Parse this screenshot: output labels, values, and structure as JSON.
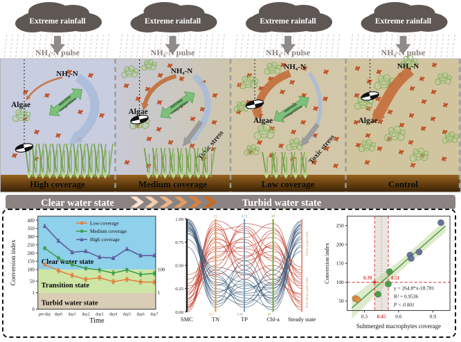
{
  "figure": {
    "cloud_label": "Extreme rainfall",
    "pulse_label": "NH₄-N pulse",
    "nh4_label": "NH₄-N",
    "algae_label": "Algae",
    "competition_label_line1": "nutrient",
    "competition_label_line2": "competition",
    "toxic_label": "Toxic stress",
    "panels": [
      {
        "coverage": "High coverage",
        "grass": "high",
        "has_competition": true,
        "has_blue": true,
        "has_toxic": false
      },
      {
        "coverage": "Medium coverage",
        "grass": "medium",
        "has_competition": true,
        "has_blue": true,
        "has_toxic": true
      },
      {
        "coverage": "Low coverage",
        "grass": "low",
        "has_competition": true,
        "has_blue": true,
        "has_toxic": true
      },
      {
        "coverage": "Control",
        "grass": "none",
        "has_competition": false,
        "has_blue": false,
        "has_toxic": false
      }
    ],
    "transition": {
      "left": "Clear water state",
      "right": "Turbid water state"
    }
  },
  "colors": {
    "water": [
      "#c9cde0",
      "grad",
      "#d2c7a9",
      "#d1c5a0"
    ],
    "water_mid_from": "#c7c9d6",
    "water_mid_to": "#cfc6ad",
    "sediment_top": "#96621f",
    "sediment_bottom": "#3a2104",
    "cloud": "#5e5753",
    "rain": "#cbc6c2",
    "pulse_text": "#8a827e",
    "nh4_dot": "#c0542a",
    "algae": "#86b05e",
    "competition_arrow": "#7cc07c",
    "blue_arrow": "#a9bdd9",
    "orange_arrow": "#c4703d",
    "grey_arrow": "#9b9b9b",
    "bar_bg": "#8b8381",
    "chevrons": [
      "#f6e2cd",
      "#f2cead",
      "#edb488",
      "#e29a62",
      "#d8813c",
      "#cb6a1e"
    ]
  },
  "chart_data": [
    {
      "type": "line",
      "xlabel": "Time",
      "ylabel": "Conversion index",
      "categories": [
        "pre-day",
        "day0",
        "day1",
        "day2",
        "day3",
        "day4",
        "day5",
        "day6",
        "day7"
      ],
      "series": [
        {
          "name": "Low coverage",
          "color": "#e2813f",
          "marker": "square",
          "values": [
            130,
            95,
            75,
            58,
            65,
            48,
            58,
            47,
            46
          ]
        },
        {
          "name": "Medium coverage",
          "color": "#3c9e4d",
          "marker": "circle",
          "values": [
            230,
            170,
            130,
            107,
            98,
            85,
            98,
            79,
            83
          ]
        },
        {
          "name": "High coverage",
          "color": "#5b5c9d",
          "marker": "triangle",
          "values": [
            365,
            275,
            205,
            212,
            175,
            170,
            225,
            185,
            186
          ]
        }
      ],
      "yticks": [
        0,
        1,
        50,
        100,
        150,
        200,
        250,
        300,
        350,
        400
      ],
      "right_ticks": [
        100,
        1
      ],
      "ylim": [
        0,
        425
      ],
      "zones": [
        {
          "label": "Clear water state",
          "range": [
            100,
            425
          ],
          "color": "#8fd0ea"
        },
        {
          "label": "Transition state",
          "range": [
            1,
            100
          ],
          "color": "#cde6a5"
        },
        {
          "label": "Turbid water state",
          "range": [
            0,
            1
          ],
          "color": "#d9cdb6"
        }
      ],
      "legend_position": "top-right",
      "grid": false
    },
    {
      "type": "parallel",
      "axes": [
        {
          "label": "SMC",
          "color": "#1a1a1a",
          "top": "",
          "bottom": ""
        },
        {
          "label": "TN",
          "color": "#e0923f",
          "top": "2.2",
          "bottom": "0.2"
        },
        {
          "label": "TP",
          "color": "#7e9ab5",
          "top": "0.12",
          "bottom": "0.03"
        },
        {
          "label": "Chl-a",
          "color": "#76a43a",
          "top": "40",
          "bottom": "10"
        },
        {
          "label": "Steady state",
          "color": "#e2907a",
          "top": "",
          "bottom": ""
        }
      ],
      "yticks": [
        "0.00",
        "0.25",
        "0.50",
        "0.75",
        "1.00"
      ],
      "right_labels": [
        "Clear water state",
        "Non-clear water state"
      ],
      "groups": [
        {
          "name": "clear-water-state",
          "color": "#3d5a78",
          "lines": [
            [
              0.95,
              0.35,
              0.2,
              0.25,
              0.9
            ],
            [
              0.92,
              0.15,
              0.45,
              0.1,
              0.95
            ],
            [
              1.0,
              0.4,
              0.1,
              0.3,
              0.85
            ],
            [
              0.88,
              0.22,
              0.3,
              0.15,
              0.8
            ],
            [
              0.97,
              0.1,
              0.55,
              0.2,
              0.92
            ],
            [
              0.9,
              0.45,
              0.25,
              0.35,
              0.75
            ],
            [
              0.85,
              0.3,
              0.15,
              0.05,
              0.88
            ],
            [
              0.93,
              0.2,
              0.4,
              0.28,
              0.97
            ],
            [
              0.98,
              0.05,
              0.35,
              0.12,
              0.82
            ],
            [
              0.87,
              0.38,
              0.05,
              0.22,
              0.9
            ],
            [
              0.94,
              0.28,
              0.5,
              0.08,
              0.7
            ],
            [
              0.91,
              0.12,
              0.22,
              0.4,
              0.93
            ],
            [
              0.78,
              0.32,
              0.18,
              0.18,
              0.78
            ],
            [
              0.96,
              0.18,
              0.08,
              0.32,
              0.86
            ],
            [
              0.89,
              0.42,
              0.32,
              0.02,
              0.72
            ],
            [
              0.99,
              0.25,
              0.12,
              0.45,
              0.98
            ],
            [
              0.7,
              0.08,
              0.28,
              0.26,
              0.65
            ],
            [
              0.84,
              0.48,
              0.42,
              0.14,
              0.94
            ]
          ]
        },
        {
          "name": "non-clear-water-state",
          "color": "#c23b28",
          "lines": [
            [
              0.05,
              0.85,
              0.6,
              0.7,
              0.3
            ],
            [
              0.1,
              0.6,
              0.9,
              0.55,
              0.15
            ],
            [
              0.02,
              0.95,
              0.45,
              0.85,
              0.4
            ],
            [
              0.2,
              0.7,
              0.75,
              0.4,
              0.05
            ],
            [
              0.15,
              0.5,
              0.95,
              0.9,
              0.25
            ],
            [
              0.0,
              0.8,
              0.55,
              0.65,
              0.45
            ],
            [
              0.3,
              0.9,
              0.35,
              0.75,
              0.1
            ],
            [
              0.08,
              0.45,
              0.8,
              0.95,
              0.35
            ],
            [
              0.25,
              0.65,
              0.65,
              0.3,
              0.2
            ],
            [
              0.12,
              0.98,
              0.85,
              0.6,
              0.02
            ],
            [
              0.35,
              0.55,
              0.7,
              0.8,
              0.48
            ],
            [
              0.04,
              0.75,
              0.4,
              0.5,
              0.28
            ],
            [
              0.18,
              0.88,
              0.92,
              0.68,
              0.08
            ],
            [
              0.28,
              0.4,
              0.58,
              0.88,
              0.42
            ],
            [
              0.06,
              0.68,
              0.78,
              0.45,
              0.18
            ],
            [
              0.22,
              0.92,
              0.5,
              0.72,
              0.32
            ],
            [
              0.4,
              0.58,
              0.88,
              0.35,
              0.12
            ],
            [
              0.14,
              0.78,
              0.68,
              0.58,
              0.38
            ]
          ]
        }
      ]
    },
    {
      "type": "scatter",
      "xlabel": "Submerged macrophytes coverage",
      "ylabel": "Conversion index",
      "xticks": [
        "0.3",
        "0.6",
        "0.9"
      ],
      "yticks": [
        50,
        100,
        150,
        200,
        250
      ],
      "points": [
        {
          "x": 0.22,
          "y": 57,
          "color": "#df8f3f"
        },
        {
          "x": 0.24,
          "y": 54,
          "color": "#df8f3f"
        },
        {
          "x": 0.42,
          "y": 68,
          "color": "#4a9e4a"
        },
        {
          "x": 0.51,
          "y": 95,
          "color": "#4a9e4a"
        },
        {
          "x": 0.52,
          "y": 128,
          "color": "#4a9e4a"
        },
        {
          "x": 0.7,
          "y": 172,
          "color": "#66739f"
        },
        {
          "x": 0.71,
          "y": 163,
          "color": "#66739f"
        },
        {
          "x": 0.78,
          "y": 180,
          "color": "#66739f"
        },
        {
          "x": 0.97,
          "y": 258,
          "color": "#66739f"
        }
      ],
      "regression": {
        "equation": "y = 264.8*x-18.781",
        "r2": "R² = 0.9536",
        "p": "P < 0.001",
        "slope": 264.8,
        "intercept": -18.781,
        "line_color": "#5aa050",
        "band_color": "#bcd79a"
      },
      "threshold": {
        "hline": 100,
        "vlines": [
          0.39,
          0.51
        ],
        "vline_labels": [
          "0.39",
          "0.51"
        ],
        "mid_tick": "0.45",
        "color": "#e03030"
      }
    }
  ]
}
